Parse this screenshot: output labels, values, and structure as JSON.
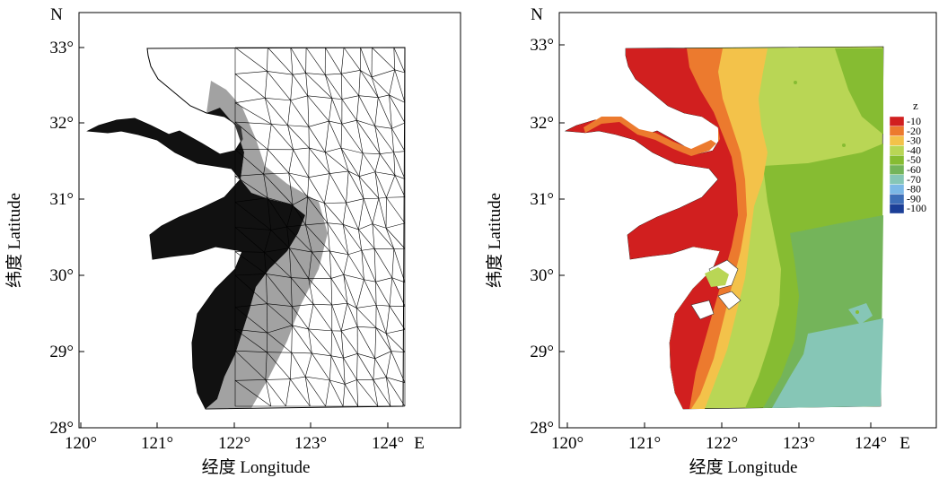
{
  "panels": [
    {
      "id": "mesh",
      "north_label": "N",
      "east_label": "E",
      "x_axis_title": "经度 Longitude",
      "y_axis_title": "纬度 Latitude",
      "x_ticks": [
        "120°",
        "121°",
        "122°",
        "123°",
        "124°"
      ],
      "y_ticks": [
        "28°",
        "29°",
        "30°",
        "31°",
        "32°",
        "33°"
      ],
      "content": "unstructured triangular mesh"
    },
    {
      "id": "depth",
      "north_label": "N",
      "east_label": "E",
      "x_axis_title": "经度 Longitude",
      "y_axis_title": "纬度 Latitude",
      "x_ticks": [
        "120°",
        "121°",
        "122°",
        "123°",
        "124°"
      ],
      "y_ticks": [
        "28°",
        "29°",
        "30°",
        "31°",
        "32°",
        "33°"
      ],
      "content": "bathymetry contour fill"
    }
  ],
  "map_extent": {
    "lon_range": [
      120,
      124
    ],
    "lat_range": [
      28,
      33
    ]
  },
  "legend": {
    "title": "z",
    "entries": [
      {
        "label": "-10",
        "color": "#d11f1f"
      },
      {
        "label": "-20",
        "color": "#ec7a2e"
      },
      {
        "label": "-30",
        "color": "#f3c24a"
      },
      {
        "label": "-40",
        "color": "#b9d655"
      },
      {
        "label": "-50",
        "color": "#86bc32"
      },
      {
        "label": "-60",
        "color": "#74b45a"
      },
      {
        "label": "-70",
        "color": "#86c6b6"
      },
      {
        "label": "-80",
        "color": "#7cb8e6"
      },
      {
        "label": "-90",
        "color": "#3e6fb8"
      },
      {
        "label": "-100",
        "color": "#1b3f97"
      }
    ]
  }
}
